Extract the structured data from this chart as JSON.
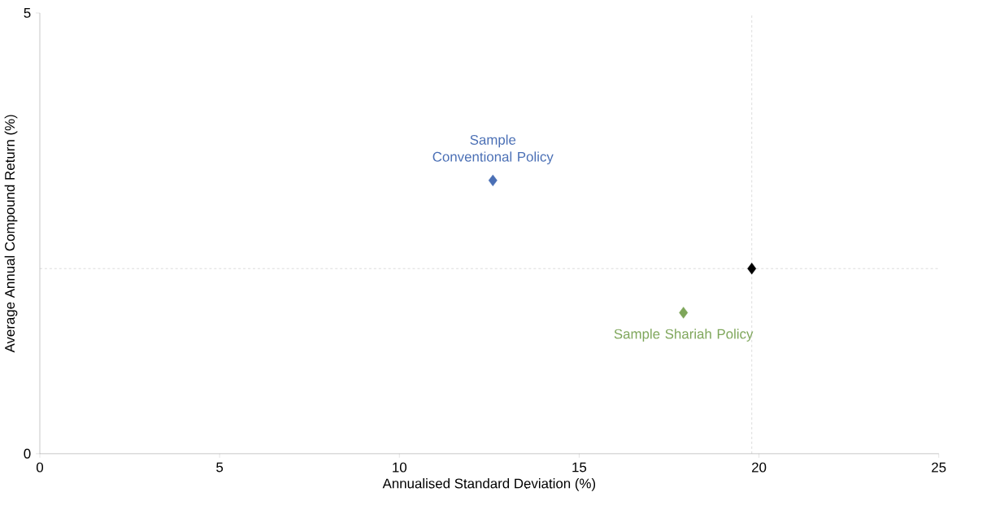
{
  "chart_data": {
    "type": "scatter",
    "xlabel": "Annualised Standard Deviation (%)",
    "ylabel": "Average Annual Compound Return (%)",
    "xlim": [
      0,
      25
    ],
    "ylim": [
      0,
      5
    ],
    "xticks": [
      0,
      5,
      10,
      15,
      20,
      25
    ],
    "yticks": [
      0,
      5
    ],
    "marker": "diamond",
    "series": [
      {
        "name": "Sample Conventional Policy",
        "color": "#4a6fb5",
        "x": [
          12.6
        ],
        "values": [
          3.1
        ]
      },
      {
        "name": "Sample Shariah Policy",
        "color": "#7ea65a",
        "x": [
          17.9
        ],
        "values": [
          1.6
        ]
      },
      {
        "color": "#000000",
        "x": [
          19.8
        ],
        "values": [
          2.1
        ]
      }
    ],
    "ref_lines": [
      {
        "axis": "x",
        "value": 19.8,
        "color": "#a6a6a6",
        "line_style": "dashed"
      },
      {
        "axis": "y",
        "value": 2.1,
        "color": "#a6a6a6",
        "line_style": "dashed"
      }
    ]
  }
}
